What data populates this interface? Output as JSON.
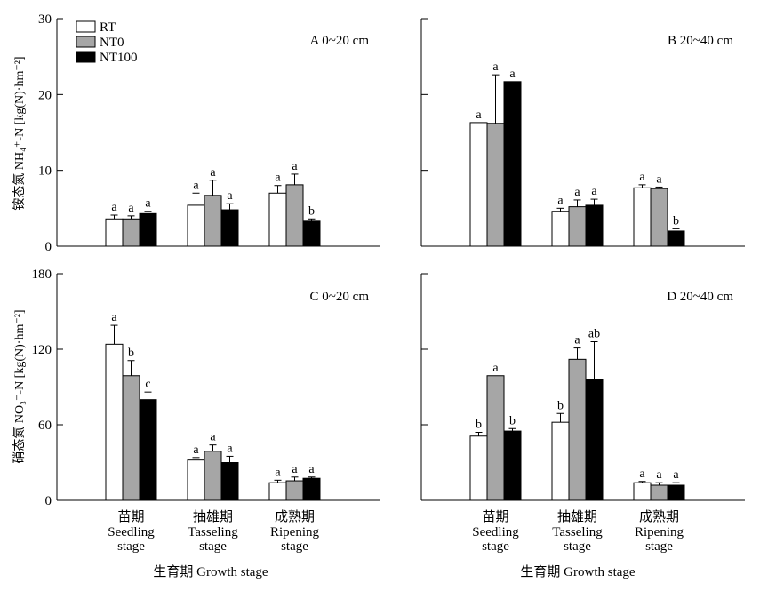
{
  "y_axis_labels": {
    "top": "铵态氮 NH₄⁺-N [kg(N)·hm⁻²]",
    "bottom": "硝态氮 NO₃⁻-N [kg(N)·hm⁻²]"
  },
  "x_axis_label": "生育期 Growth stage",
  "stages": [
    {
      "cn": "苗期",
      "en1": "Seedling",
      "en2": "stage"
    },
    {
      "cn": "抽雄期",
      "en1": "Tasseling",
      "en2": "stage"
    },
    {
      "cn": "成熟期",
      "en1": "Ripening",
      "en2": "stage"
    }
  ],
  "legend": [
    {
      "name": "RT",
      "color": "#ffffff"
    },
    {
      "name": "NT0",
      "color": "#a6a6a6"
    },
    {
      "name": "NT100",
      "color": "#000000"
    }
  ],
  "chart_data": [
    {
      "type": "bar",
      "panel": "A 0~20 cm",
      "categories": [
        "苗期 Seedling stage",
        "抽雄期 Tasseling stage",
        "成熟期 Ripening stage"
      ],
      "ylim": [
        0,
        30
      ],
      "yticks": [
        0,
        10,
        20,
        30
      ],
      "series": [
        {
          "name": "RT",
          "values": [
            3.6,
            5.4,
            7.0
          ],
          "errors": [
            0.5,
            1.6,
            1.0
          ],
          "letters": [
            "a",
            "a",
            "a"
          ]
        },
        {
          "name": "NT0",
          "values": [
            3.6,
            6.7,
            8.1
          ],
          "errors": [
            0.4,
            2.0,
            1.4
          ],
          "letters": [
            "a",
            "a",
            "a"
          ]
        },
        {
          "name": "NT100",
          "values": [
            4.3,
            4.8,
            3.3
          ],
          "errors": [
            0.3,
            0.8,
            0.3
          ],
          "letters": [
            "a",
            "a",
            "b"
          ]
        }
      ]
    },
    {
      "type": "bar",
      "panel": "B 20~40 cm",
      "categories": [
        "苗期 Seedling stage",
        "抽雄期 Tasseling stage",
        "成熟期 Ripening stage"
      ],
      "ylim": [
        0,
        30
      ],
      "yticks": [
        0,
        10,
        20,
        30
      ],
      "ytick_labels_shown": false,
      "series": [
        {
          "name": "RT",
          "values": [
            16.3,
            4.6,
            7.7
          ],
          "errors": [
            0,
            0.4,
            0.4
          ],
          "letters": [
            "a",
            "a",
            "a"
          ]
        },
        {
          "name": "NT0",
          "values": [
            16.2,
            5.2,
            7.6
          ],
          "errors": [
            6.4,
            0.9,
            0.2
          ],
          "letters": [
            "a",
            "a",
            "a"
          ]
        },
        {
          "name": "NT100",
          "values": [
            21.7,
            5.4,
            2.0
          ],
          "errors": [
            0,
            0.8,
            0.3
          ],
          "letters": [
            "a",
            "a",
            "b"
          ]
        }
      ]
    },
    {
      "type": "bar",
      "panel": "C 0~20 cm",
      "categories": [
        "苗期 Seedling stage",
        "抽雄期 Tasseling stage",
        "成熟期 Ripening stage"
      ],
      "ylim": [
        0,
        180
      ],
      "yticks": [
        0,
        60,
        120,
        180
      ],
      "series": [
        {
          "name": "RT",
          "values": [
            124,
            32,
            14
          ],
          "errors": [
            15,
            2,
            2
          ],
          "letters": [
            "a",
            "a",
            "a"
          ]
        },
        {
          "name": "NT0",
          "values": [
            99,
            39,
            15.5
          ],
          "errors": [
            12,
            5,
            3
          ],
          "letters": [
            "b",
            "a",
            "a"
          ]
        },
        {
          "name": "NT100",
          "values": [
            80,
            30,
            17.5
          ],
          "errors": [
            6,
            5,
            1
          ],
          "letters": [
            "c",
            "a",
            "a"
          ]
        }
      ]
    },
    {
      "type": "bar",
      "panel": "D 20~40 cm",
      "categories": [
        "苗期 Seedling stage",
        "抽雄期 Tasseling stage",
        "成熟期 Ripening stage"
      ],
      "ylim": [
        0,
        180
      ],
      "yticks": [
        0,
        60,
        120,
        180
      ],
      "ytick_labels_shown": false,
      "series": [
        {
          "name": "RT",
          "values": [
            51,
            62,
            14
          ],
          "errors": [
            3,
            7,
            1
          ],
          "letters": [
            "b",
            "b",
            "a"
          ]
        },
        {
          "name": "NT0",
          "values": [
            99,
            112,
            12
          ],
          "errors": [
            0,
            9,
            2
          ],
          "letters": [
            "a",
            "a",
            "a"
          ]
        },
        {
          "name": "NT100",
          "values": [
            55,
            96,
            12
          ],
          "errors": [
            2,
            30,
            2
          ],
          "letters": [
            "b",
            "ab",
            "a"
          ]
        }
      ]
    }
  ]
}
